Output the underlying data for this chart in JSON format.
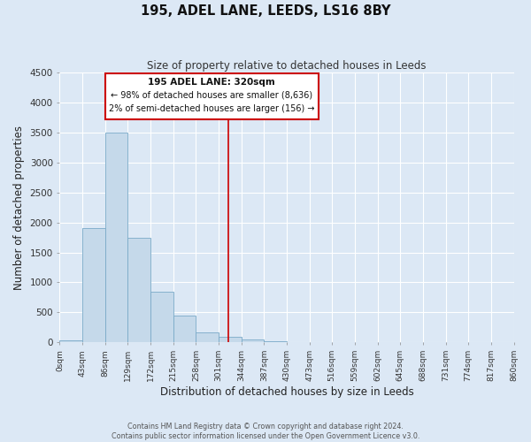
{
  "title": "195, ADEL LANE, LEEDS, LS16 8BY",
  "subtitle": "Size of property relative to detached houses in Leeds",
  "xlabel": "Distribution of detached houses by size in Leeds",
  "ylabel": "Number of detached properties",
  "bar_color": "#c5d9ea",
  "bar_edge_color": "#7aaac8",
  "background_color": "#dce8f5",
  "grid_color": "#ffffff",
  "bar_heights": [
    40,
    1900,
    3500,
    1750,
    840,
    450,
    165,
    95,
    55,
    25,
    0,
    0,
    0,
    0,
    0,
    0,
    0,
    0,
    0,
    0
  ],
  "bin_edges": [
    0,
    43,
    86,
    129,
    172,
    215,
    258,
    301,
    344,
    387,
    430,
    473,
    516,
    559,
    602,
    645,
    688,
    731,
    774,
    817,
    860
  ],
  "tick_labels": [
    "0sqm",
    "43sqm",
    "86sqm",
    "129sqm",
    "172sqm",
    "215sqm",
    "258sqm",
    "301sqm",
    "344sqm",
    "387sqm",
    "430sqm",
    "473sqm",
    "516sqm",
    "559sqm",
    "602sqm",
    "645sqm",
    "688sqm",
    "731sqm",
    "774sqm",
    "817sqm",
    "860sqm"
  ],
  "ylim": [
    0,
    4500
  ],
  "yticks": [
    0,
    500,
    1000,
    1500,
    2000,
    2500,
    3000,
    3500,
    4000,
    4500
  ],
  "vline_x": 320,
  "vline_color": "#cc0000",
  "annotation_text_line1": "195 ADEL LANE: 320sqm",
  "annotation_text_line2": "← 98% of detached houses are smaller (8,636)",
  "annotation_text_line3": "2% of semi-detached houses are larger (156) →",
  "annotation_box_color": "#cc0000",
  "footer_line1": "Contains HM Land Registry data © Crown copyright and database right 2024.",
  "footer_line2": "Contains public sector information licensed under the Open Government Licence v3.0."
}
